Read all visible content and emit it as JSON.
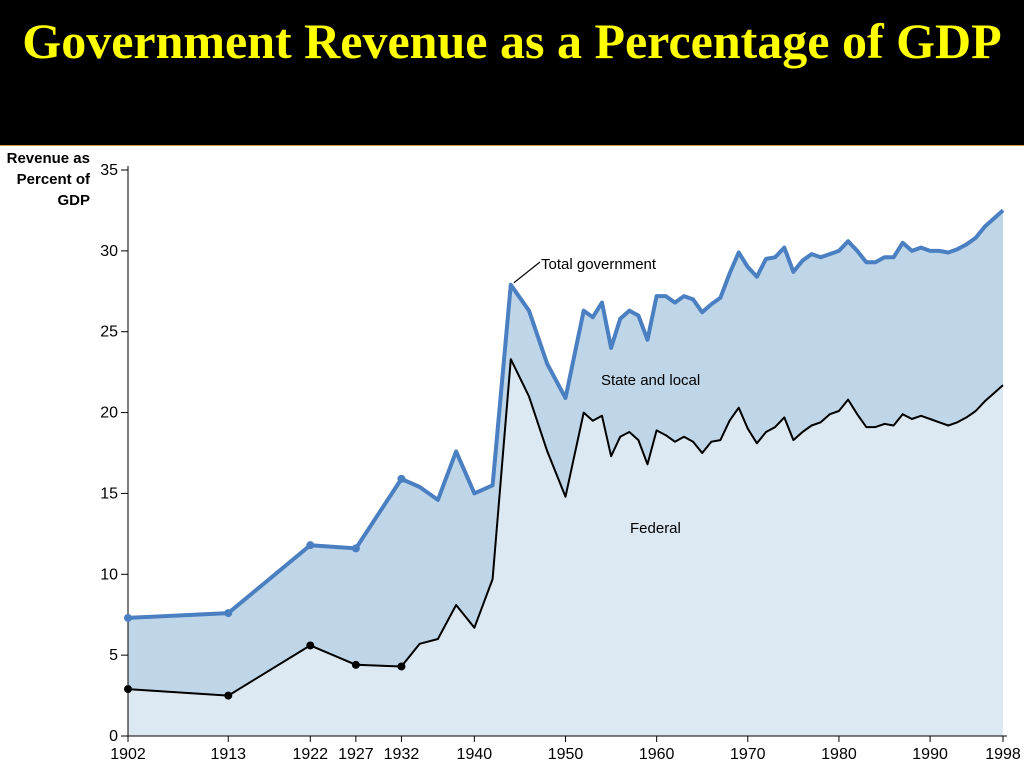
{
  "slide": {
    "title": "Government Revenue as a Percentage of GDP"
  },
  "colors": {
    "title": "#ffff00",
    "background": "#000000",
    "total_line": "#4a7fc1",
    "state_local_fill": "#bfd6e8",
    "federal_fill": "#dce9f2",
    "federal_line": "#000000"
  },
  "chart_data": {
    "type": "area",
    "ylabel_lines": [
      "Revenue as",
      "Percent of",
      "GDP"
    ],
    "ylim": [
      0,
      35
    ],
    "yticks": [
      0,
      5,
      10,
      15,
      20,
      25,
      30,
      35
    ],
    "xlim": [
      1902,
      1998
    ],
    "xtick_labels": [
      "1902",
      "1913",
      "1922",
      "1927",
      "1932",
      "1940",
      "1950",
      "1960",
      "1970",
      "1980",
      "1990",
      "1998"
    ],
    "annotations": {
      "total": "Total government",
      "state_local": "State and local",
      "federal": "Federal"
    },
    "series": [
      {
        "name": "Total government",
        "points": [
          [
            1902,
            7.3
          ],
          [
            1913,
            7.6
          ],
          [
            1922,
            11.8
          ],
          [
            1927,
            11.6
          ],
          [
            1932,
            15.9
          ],
          [
            1934,
            15.4
          ],
          [
            1936,
            14.6
          ],
          [
            1938,
            17.6
          ],
          [
            1940,
            15.0
          ],
          [
            1942,
            15.5
          ],
          [
            1944,
            27.9
          ],
          [
            1946,
            26.3
          ],
          [
            1948,
            23.0
          ],
          [
            1950,
            20.9
          ],
          [
            1952,
            26.3
          ],
          [
            1953,
            25.9
          ],
          [
            1954,
            26.8
          ],
          [
            1955,
            24.0
          ],
          [
            1956,
            25.8
          ],
          [
            1957,
            26.3
          ],
          [
            1958,
            26.0
          ],
          [
            1959,
            24.5
          ],
          [
            1960,
            27.2
          ],
          [
            1961,
            27.2
          ],
          [
            1962,
            26.8
          ],
          [
            1963,
            27.2
          ],
          [
            1964,
            27.0
          ],
          [
            1965,
            26.2
          ],
          [
            1966,
            26.7
          ],
          [
            1967,
            27.1
          ],
          [
            1968,
            28.6
          ],
          [
            1969,
            29.9
          ],
          [
            1970,
            29.0
          ],
          [
            1971,
            28.4
          ],
          [
            1972,
            29.5
          ],
          [
            1973,
            29.6
          ],
          [
            1974,
            30.2
          ],
          [
            1975,
            28.7
          ],
          [
            1976,
            29.4
          ],
          [
            1977,
            29.8
          ],
          [
            1978,
            29.6
          ],
          [
            1979,
            29.8
          ],
          [
            1980,
            30.0
          ],
          [
            1981,
            30.6
          ],
          [
            1982,
            30.0
          ],
          [
            1983,
            29.3
          ],
          [
            1984,
            29.3
          ],
          [
            1985,
            29.6
          ],
          [
            1986,
            29.6
          ],
          [
            1987,
            30.5
          ],
          [
            1988,
            30.0
          ],
          [
            1989,
            30.2
          ],
          [
            1990,
            30.0
          ],
          [
            1991,
            30.0
          ],
          [
            1992,
            29.9
          ],
          [
            1993,
            30.1
          ],
          [
            1994,
            30.4
          ],
          [
            1995,
            30.8
          ],
          [
            1996,
            31.5
          ],
          [
            1997,
            32.0
          ],
          [
            1998,
            32.5
          ]
        ],
        "markers_at": [
          1902,
          1913,
          1922,
          1927,
          1932
        ]
      },
      {
        "name": "Federal",
        "points": [
          [
            1902,
            2.9
          ],
          [
            1913,
            2.5
          ],
          [
            1922,
            5.6
          ],
          [
            1927,
            4.4
          ],
          [
            1932,
            4.3
          ],
          [
            1934,
            5.7
          ],
          [
            1936,
            6.0
          ],
          [
            1938,
            8.1
          ],
          [
            1940,
            6.7
          ],
          [
            1942,
            9.7
          ],
          [
            1944,
            23.3
          ],
          [
            1946,
            21.0
          ],
          [
            1948,
            17.6
          ],
          [
            1950,
            14.8
          ],
          [
            1952,
            20.0
          ],
          [
            1953,
            19.5
          ],
          [
            1954,
            19.8
          ],
          [
            1955,
            17.3
          ],
          [
            1956,
            18.5
          ],
          [
            1957,
            18.8
          ],
          [
            1958,
            18.3
          ],
          [
            1959,
            16.8
          ],
          [
            1960,
            18.9
          ],
          [
            1961,
            18.6
          ],
          [
            1962,
            18.2
          ],
          [
            1963,
            18.5
          ],
          [
            1964,
            18.2
          ],
          [
            1965,
            17.5
          ],
          [
            1966,
            18.2
          ],
          [
            1967,
            18.3
          ],
          [
            1968,
            19.5
          ],
          [
            1969,
            20.3
          ],
          [
            1970,
            19.0
          ],
          [
            1971,
            18.1
          ],
          [
            1972,
            18.8
          ],
          [
            1973,
            19.1
          ],
          [
            1974,
            19.7
          ],
          [
            1975,
            18.3
          ],
          [
            1976,
            18.8
          ],
          [
            1977,
            19.2
          ],
          [
            1978,
            19.4
          ],
          [
            1979,
            19.9
          ],
          [
            1980,
            20.1
          ],
          [
            1981,
            20.8
          ],
          [
            1982,
            19.9
          ],
          [
            1983,
            19.1
          ],
          [
            1984,
            19.1
          ],
          [
            1985,
            19.3
          ],
          [
            1986,
            19.2
          ],
          [
            1987,
            19.9
          ],
          [
            1988,
            19.6
          ],
          [
            1989,
            19.8
          ],
          [
            1990,
            19.6
          ],
          [
            1991,
            19.4
          ],
          [
            1992,
            19.2
          ],
          [
            1993,
            19.4
          ],
          [
            1994,
            19.7
          ],
          [
            1995,
            20.1
          ],
          [
            1996,
            20.7
          ],
          [
            1997,
            21.2
          ],
          [
            1998,
            21.7
          ]
        ],
        "markers_at": [
          1902,
          1913,
          1922,
          1927,
          1932
        ]
      }
    ]
  }
}
